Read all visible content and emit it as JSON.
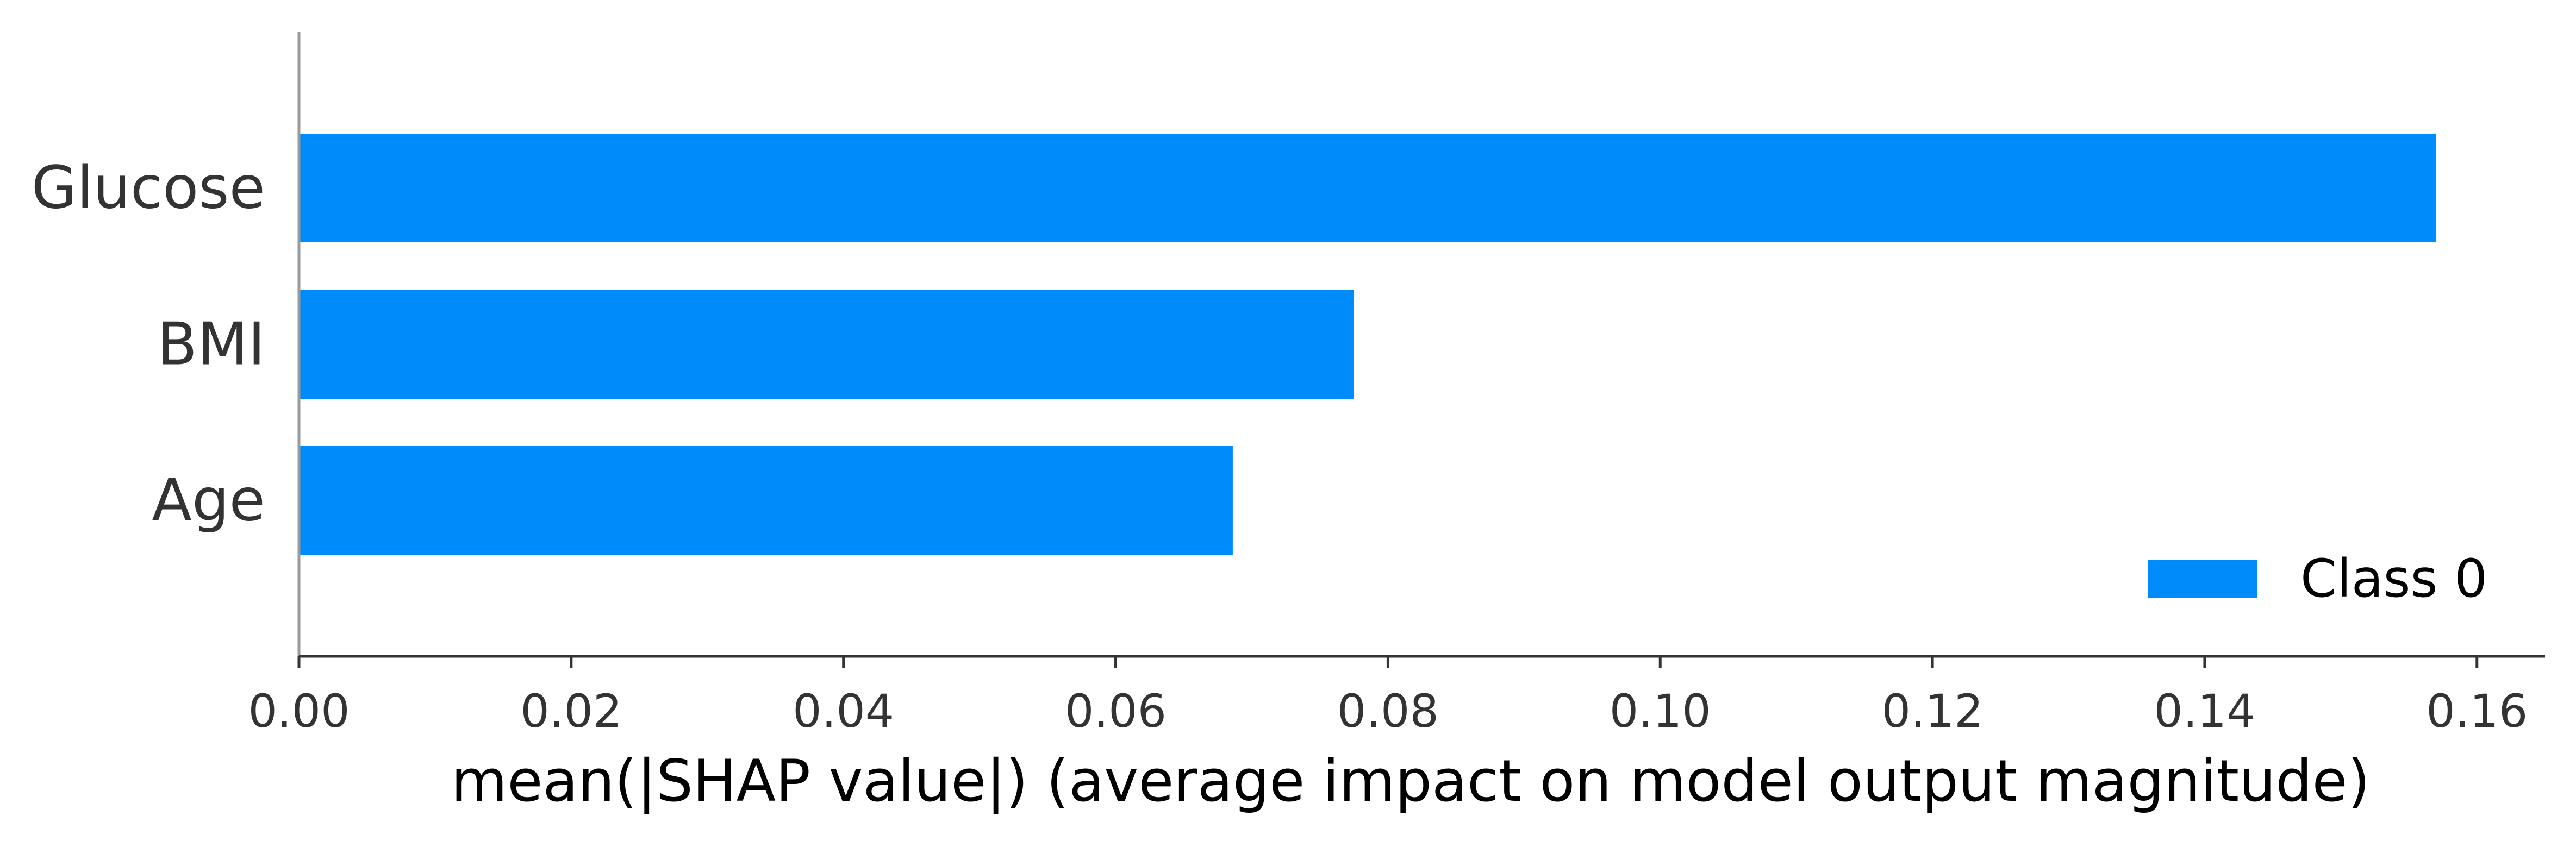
{
  "chart_data": {
    "type": "bar",
    "orientation": "horizontal",
    "title": "",
    "categories": [
      "Glucose",
      "BMI",
      "Age"
    ],
    "series": [
      {
        "name": "Class 0",
        "values": [
          0.157,
          0.0775,
          0.0686
        ],
        "color": "#008bfb"
      }
    ],
    "xlabel": "mean(|SHAP value|) (average impact on model output magnitude)",
    "ylabel": "",
    "xlim": [
      0.0,
      0.165
    ],
    "xticks": [
      0.0,
      0.02,
      0.04,
      0.06,
      0.08,
      0.1,
      0.12,
      0.14,
      0.16
    ],
    "xtick_labels": [
      "0.00",
      "0.02",
      "0.04",
      "0.06",
      "0.08",
      "0.10",
      "0.12",
      "0.14",
      "0.16"
    ],
    "grid": false,
    "legend_position": "bottom-right"
  }
}
